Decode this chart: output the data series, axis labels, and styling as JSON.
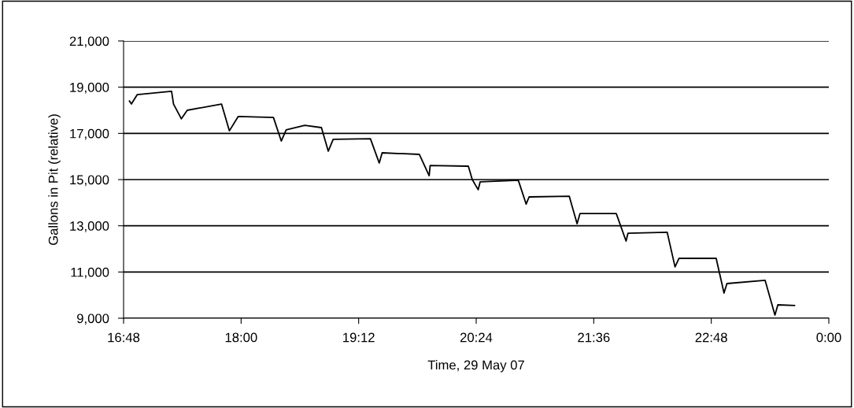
{
  "chart_data": {
    "type": "line",
    "xlabel": "Time, 29 May 07",
    "ylabel": "Gallons in Pit (relative)",
    "x": [
      16.86,
      16.88,
      16.94,
      17.29,
      17.31,
      17.39,
      17.45,
      17.8,
      17.88,
      17.97,
      18.33,
      18.41,
      18.46,
      18.65,
      18.82,
      18.89,
      18.94,
      19.32,
      19.41,
      19.44,
      19.82,
      19.92,
      19.93,
      20.32,
      20.36,
      20.42,
      20.44,
      20.83,
      20.91,
      20.94,
      21.35,
      21.43,
      21.46,
      21.83,
      21.93,
      21.95,
      22.35,
      22.43,
      22.47,
      22.85,
      22.93,
      22.96,
      23.35,
      23.45,
      23.48,
      23.65
    ],
    "series": [
      {
        "color": "#000000",
        "values": [
          18400,
          18270,
          18680,
          18820,
          18270,
          17630,
          18000,
          18270,
          17110,
          17730,
          17690,
          16670,
          17150,
          17350,
          17250,
          16230,
          16740,
          16770,
          15720,
          16160,
          16090,
          15170,
          15610,
          15580,
          15000,
          14560,
          14900,
          14970,
          13940,
          14250,
          14280,
          13090,
          13530,
          13530,
          12340,
          12680,
          12720,
          11220,
          11590,
          11590,
          10090,
          10500,
          10640,
          9140,
          9580,
          9550
        ]
      }
    ],
    "xlim": [
      16.8,
      24
    ],
    "xticks": [
      {
        "value": 16.8,
        "label": "16:48"
      },
      {
        "value": 18,
        "label": "18:00"
      },
      {
        "value": 19.2,
        "label": "19:12"
      },
      {
        "value": 20.4,
        "label": "20:24"
      },
      {
        "value": 21.6,
        "label": "21:36"
      },
      {
        "value": 22.8,
        "label": "22:48"
      },
      {
        "value": 24,
        "label": "0:00"
      }
    ],
    "ylim": [
      9000,
      21000
    ],
    "yticks": [
      {
        "value": 9000,
        "label": "9,000"
      },
      {
        "value": 11000,
        "label": "11,000"
      },
      {
        "value": 13000,
        "label": "13,000"
      },
      {
        "value": 15000,
        "label": "15,000"
      },
      {
        "value": 17000,
        "label": "17,000"
      },
      {
        "value": 19000,
        "label": "19,000"
      },
      {
        "value": 21000,
        "label": "21,000"
      }
    ],
    "grid": "y",
    "line_style": "solid",
    "marker": "none"
  }
}
